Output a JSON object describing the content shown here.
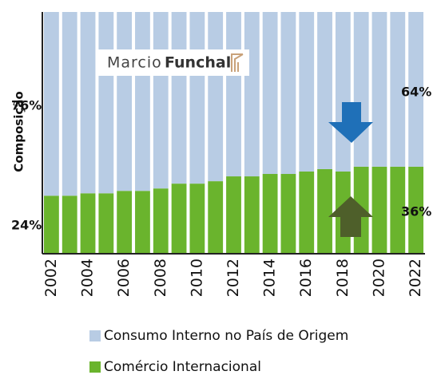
{
  "chart_data": {
    "type": "stacked-bar",
    "ylabel": "Composição",
    "logo": [
      "Marcio",
      "Funchal"
    ],
    "categories": [
      "2002",
      null,
      "2004",
      null,
      "2006",
      null,
      "2008",
      null,
      "2010",
      null,
      "2012",
      null,
      "2014",
      null,
      "2016",
      null,
      "2018",
      null,
      "2020",
      null,
      "2022"
    ],
    "series": [
      {
        "name": "Comércio Internacional",
        "color": "#6ab42d",
        "values": [
          24,
          24,
          25,
          25,
          26,
          26,
          27,
          29,
          29,
          30,
          32,
          32,
          33,
          33,
          34,
          35,
          34,
          36,
          36,
          36,
          36
        ]
      },
      {
        "name": "Consumo Interno no País de Origem",
        "color": "#b8cce4",
        "values": [
          76,
          76,
          75,
          75,
          74,
          74,
          73,
          71,
          71,
          70,
          68,
          68,
          67,
          67,
          66,
          65,
          66,
          64,
          64,
          64,
          64
        ]
      }
    ],
    "annotations": [
      "76%",
      "24%",
      "64%",
      "36%"
    ],
    "ylim": [
      0,
      100
    ]
  }
}
